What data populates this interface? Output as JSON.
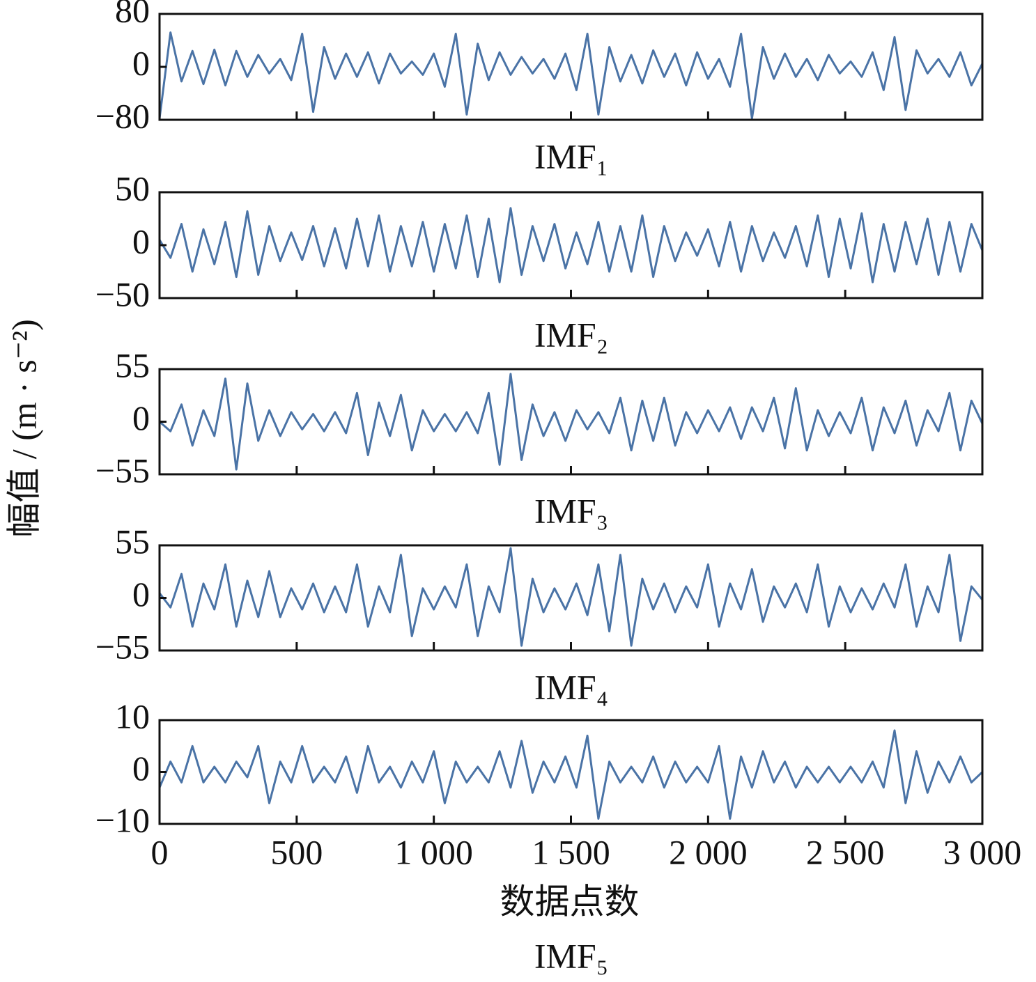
{
  "ylabel": "幅值 / (m · s⁻²)",
  "chart_data": [
    {
      "type": "line",
      "title": "IMF₁",
      "color": "#4a73a6",
      "x": [
        0,
        40,
        80,
        120,
        160,
        200,
        240,
        280,
        320,
        360,
        400,
        440,
        480,
        520,
        560,
        600,
        640,
        680,
        720,
        760,
        800,
        840,
        880,
        920,
        960,
        1000,
        1040,
        1080,
        1120,
        1160,
        1200,
        1240,
        1280,
        1320,
        1360,
        1400,
        1440,
        1480,
        1520,
        1560,
        1600,
        1640,
        1680,
        1720,
        1760,
        1800,
        1840,
        1880,
        1920,
        1960,
        2000,
        2040,
        2080,
        2120,
        2160,
        2200,
        2240,
        2280,
        2320,
        2360,
        2400,
        2440,
        2480,
        2520,
        2560,
        2600,
        2640,
        2680,
        2720,
        2760,
        2800,
        2840,
        2880,
        2920,
        2960,
        3000
      ],
      "values": [
        -78,
        52,
        -22,
        24,
        -26,
        26,
        -28,
        24,
        -15,
        18,
        -10,
        12,
        -20,
        50,
        -68,
        30,
        -18,
        20,
        -15,
        22,
        -25,
        20,
        -10,
        8,
        -12,
        20,
        -30,
        50,
        -72,
        35,
        -20,
        22,
        -12,
        15,
        -10,
        12,
        -18,
        20,
        -35,
        50,
        -72,
        30,
        -22,
        18,
        -25,
        25,
        -15,
        20,
        -28,
        22,
        -18,
        12,
        -30,
        50,
        -78,
        30,
        -18,
        20,
        -15,
        12,
        -20,
        18,
        -10,
        8,
        -15,
        22,
        -35,
        45,
        -65,
        25,
        -10,
        12,
        -15,
        22,
        -28,
        5
      ],
      "xlim": [
        0,
        3000
      ],
      "xticks": [
        0,
        500,
        1000,
        1500,
        2000,
        2500,
        3000
      ],
      "ylim": [
        -80,
        80
      ],
      "yticks": [
        {
          "value": -80,
          "label": "−80"
        },
        0,
        80
      ]
    },
    {
      "type": "line",
      "title": "IMF₂",
      "color": "#4a73a6",
      "x": [
        0,
        40,
        80,
        120,
        160,
        200,
        240,
        280,
        320,
        360,
        400,
        440,
        480,
        520,
        560,
        600,
        640,
        680,
        720,
        760,
        800,
        840,
        880,
        920,
        960,
        1000,
        1040,
        1080,
        1120,
        1160,
        1200,
        1240,
        1280,
        1320,
        1360,
        1400,
        1440,
        1480,
        1520,
        1560,
        1600,
        1640,
        1680,
        1720,
        1760,
        1800,
        1840,
        1880,
        1920,
        1960,
        2000,
        2040,
        2080,
        2120,
        2160,
        2200,
        2240,
        2280,
        2320,
        2360,
        2400,
        2440,
        2480,
        2520,
        2560,
        2600,
        2640,
        2680,
        2720,
        2760,
        2800,
        2840,
        2880,
        2920,
        2960,
        3000
      ],
      "values": [
        5,
        -12,
        20,
        -25,
        15,
        -18,
        22,
        -30,
        32,
        -28,
        18,
        -15,
        12,
        -14,
        18,
        -20,
        16,
        -22,
        25,
        -20,
        28,
        -25,
        18,
        -20,
        22,
        -25,
        20,
        -22,
        28,
        -30,
        25,
        -35,
        35,
        -28,
        18,
        -15,
        20,
        -22,
        12,
        -18,
        22,
        -25,
        18,
        -25,
        28,
        -30,
        18,
        -15,
        12,
        -10,
        15,
        -20,
        22,
        -25,
        18,
        -15,
        12,
        -12,
        18,
        -20,
        28,
        -30,
        25,
        -22,
        30,
        -35,
        20,
        -25,
        22,
        -18,
        25,
        -28,
        22,
        -25,
        20,
        -5
      ],
      "xlim": [
        0,
        3000
      ],
      "xticks": [
        0,
        500,
        1000,
        1500,
        2000,
        2500,
        3000
      ],
      "ylim": [
        -50,
        50
      ],
      "yticks": [
        {
          "value": -50,
          "label": "−50"
        },
        0,
        50
      ]
    },
    {
      "type": "line",
      "title": "IMF₃",
      "color": "#4a73a6",
      "x": [
        0,
        40,
        80,
        120,
        160,
        200,
        240,
        280,
        320,
        360,
        400,
        440,
        480,
        520,
        560,
        600,
        640,
        680,
        720,
        760,
        800,
        840,
        880,
        920,
        960,
        1000,
        1040,
        1080,
        1120,
        1160,
        1200,
        1240,
        1280,
        1320,
        1360,
        1400,
        1440,
        1480,
        1520,
        1560,
        1600,
        1640,
        1680,
        1720,
        1760,
        1800,
        1840,
        1880,
        1920,
        1960,
        2000,
        2040,
        2080,
        2120,
        2160,
        2200,
        2240,
        2280,
        2320,
        2360,
        2400,
        2440,
        2480,
        2520,
        2560,
        2600,
        2640,
        2680,
        2720,
        2760,
        2800,
        2840,
        2880,
        2920,
        2960,
        3000
      ],
      "values": [
        0,
        -10,
        18,
        -25,
        12,
        -15,
        45,
        -50,
        40,
        -20,
        12,
        -15,
        10,
        -8,
        8,
        -10,
        10,
        -12,
        30,
        -35,
        20,
        -15,
        28,
        -30,
        12,
        -10,
        8,
        -10,
        10,
        -12,
        30,
        -45,
        50,
        -40,
        18,
        -15,
        10,
        -20,
        12,
        -8,
        10,
        -12,
        25,
        -30,
        22,
        -20,
        25,
        -25,
        10,
        -12,
        12,
        -10,
        15,
        -18,
        15,
        -10,
        25,
        -28,
        35,
        -30,
        12,
        -15,
        10,
        -12,
        25,
        -30,
        15,
        -12,
        22,
        -25,
        12,
        -10,
        30,
        -30,
        22,
        -2
      ],
      "xlim": [
        0,
        3000
      ],
      "xticks": [
        0,
        500,
        1000,
        1500,
        2000,
        2500,
        3000
      ],
      "ylim": [
        -55,
        55
      ],
      "yticks": [
        {
          "value": -55,
          "label": "−55"
        },
        0,
        55
      ]
    },
    {
      "type": "line",
      "title": "IMF₄",
      "color": "#4a73a6",
      "x": [
        0,
        40,
        80,
        120,
        160,
        200,
        240,
        280,
        320,
        360,
        400,
        440,
        480,
        520,
        560,
        600,
        640,
        680,
        720,
        760,
        800,
        840,
        880,
        920,
        960,
        1000,
        1040,
        1080,
        1120,
        1160,
        1200,
        1240,
        1280,
        1320,
        1360,
        1400,
        1440,
        1480,
        1520,
        1560,
        1600,
        1640,
        1680,
        1720,
        1760,
        1800,
        1840,
        1880,
        1920,
        1960,
        2000,
        2040,
        2080,
        2120,
        2160,
        2200,
        2240,
        2280,
        2320,
        2360,
        2400,
        2440,
        2480,
        2520,
        2560,
        2600,
        2640,
        2680,
        2720,
        2760,
        2800,
        2840,
        2880,
        2920,
        2960,
        3000
      ],
      "values": [
        5,
        -10,
        25,
        -30,
        15,
        -12,
        35,
        -30,
        18,
        -20,
        28,
        -20,
        10,
        -12,
        15,
        -15,
        12,
        -15,
        35,
        -30,
        12,
        -15,
        45,
        -40,
        10,
        -12,
        12,
        -10,
        35,
        -40,
        12,
        -15,
        52,
        -50,
        20,
        -15,
        10,
        -12,
        15,
        -18,
        35,
        -35,
        45,
        -50,
        20,
        -12,
        15,
        -15,
        12,
        -10,
        35,
        -30,
        15,
        -12,
        30,
        -25,
        12,
        -10,
        15,
        -15,
        35,
        -30,
        12,
        -15,
        10,
        -12,
        15,
        -10,
        35,
        -30,
        12,
        -15,
        45,
        -45,
        12,
        -2
      ],
      "xlim": [
        0,
        3000
      ],
      "xticks": [
        0,
        500,
        1000,
        1500,
        2000,
        2500,
        3000
      ],
      "ylim": [
        -55,
        55
      ],
      "yticks": [
        {
          "value": -55,
          "label": "−55"
        },
        0,
        55
      ]
    },
    {
      "type": "line",
      "title": "IMF₅",
      "color": "#4a73a6",
      "xlabel": "数据点数",
      "x": [
        0,
        40,
        80,
        120,
        160,
        200,
        240,
        280,
        320,
        360,
        400,
        440,
        480,
        520,
        560,
        600,
        640,
        680,
        720,
        760,
        800,
        840,
        880,
        920,
        960,
        1000,
        1040,
        1080,
        1120,
        1160,
        1200,
        1240,
        1280,
        1320,
        1360,
        1400,
        1440,
        1480,
        1520,
        1560,
        1600,
        1640,
        1680,
        1720,
        1760,
        1800,
        1840,
        1880,
        1920,
        1960,
        2000,
        2040,
        2080,
        2120,
        2160,
        2200,
        2240,
        2280,
        2320,
        2360,
        2400,
        2440,
        2480,
        2520,
        2560,
        2600,
        2640,
        2680,
        2720,
        2760,
        2800,
        2840,
        2880,
        2920,
        2960,
        3000
      ],
      "values": [
        -3,
        2,
        -2,
        5,
        -2,
        1,
        -2,
        2,
        -1,
        5,
        -6,
        2,
        -2,
        5,
        -2,
        1,
        -2,
        3,
        -4,
        5,
        -2,
        1,
        -3,
        2,
        -2,
        4,
        -6,
        2,
        -2,
        1,
        -2,
        4,
        -3,
        6,
        -4,
        2,
        -2,
        3,
        -3,
        7,
        -9,
        2,
        -2,
        1,
        -2,
        3,
        -3,
        2,
        -2,
        1,
        -2,
        5,
        -9,
        3,
        -3,
        4,
        -2,
        2,
        -3,
        1,
        -2,
        1,
        -2,
        1,
        -2,
        2,
        -3,
        8,
        -6,
        4,
        -4,
        2,
        -2,
        3,
        -2,
        0
      ],
      "xlim": [
        0,
        3000
      ],
      "xticks": [
        0,
        500,
        {
          "value": 1000,
          "label": "1 000"
        },
        {
          "value": 1500,
          "label": "1 500"
        },
        {
          "value": 2000,
          "label": "2 000"
        },
        {
          "value": 2500,
          "label": "2 500"
        },
        {
          "value": 3000,
          "label": "3 000"
        }
      ],
      "ylim": [
        -10,
        10
      ],
      "yticks": [
        {
          "value": -10,
          "label": "−10"
        },
        0,
        10
      ]
    }
  ]
}
